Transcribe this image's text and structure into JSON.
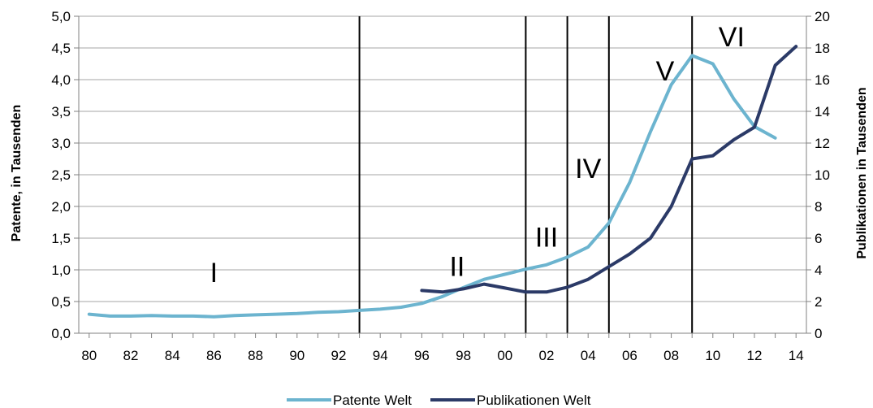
{
  "chart_data": {
    "type": "line",
    "x_labels": [
      "80",
      "82",
      "84",
      "86",
      "88",
      "90",
      "92",
      "94",
      "96",
      "98",
      "00",
      "02",
      "04",
      "06",
      "08",
      "10",
      "12",
      "14"
    ],
    "y_left": {
      "label": "Patente, in Tausenden",
      "range": [
        0,
        5
      ],
      "ticks": [
        "0,0",
        "0,5",
        "1,0",
        "1,5",
        "2,0",
        "2,5",
        "3,0",
        "3,5",
        "4,0",
        "4,5",
        "5,0"
      ]
    },
    "y_right": {
      "label": "Publikationen in Tausenden",
      "range": [
        0,
        20
      ],
      "ticks": [
        "0",
        "2",
        "4",
        "6",
        "8",
        "10",
        "12",
        "14",
        "16",
        "18",
        "20"
      ]
    },
    "grid": true,
    "legend_position": "bottom-center",
    "series": [
      {
        "name": "Patente Welt",
        "axis": "left",
        "color": "#6cb4cf",
        "x": [
          1980,
          1981,
          1982,
          1983,
          1984,
          1985,
          1986,
          1987,
          1988,
          1989,
          1990,
          1991,
          1992,
          1993,
          1994,
          1995,
          1996,
          1997,
          1998,
          1999,
          2000,
          2001,
          2002,
          2003,
          2004,
          2005,
          2006,
          2007,
          2008,
          2009,
          2010,
          2011,
          2012,
          2013
        ],
        "values": [
          0.3,
          0.27,
          0.27,
          0.28,
          0.27,
          0.27,
          0.26,
          0.28,
          0.29,
          0.3,
          0.31,
          0.33,
          0.34,
          0.36,
          0.38,
          0.41,
          0.47,
          0.58,
          0.72,
          0.85,
          0.93,
          1.01,
          1.08,
          1.2,
          1.36,
          1.74,
          2.38,
          3.18,
          3.92,
          4.38,
          4.25,
          3.7,
          3.26,
          3.08
        ]
      },
      {
        "name": "Publikationen Welt",
        "axis": "right",
        "color": "#2b3a67",
        "x": [
          1996,
          1997,
          1998,
          1999,
          2000,
          2001,
          2002,
          2003,
          2004,
          2005,
          2006,
          2007,
          2008,
          2009,
          2010,
          2011,
          2012,
          2013,
          2014
        ],
        "values": [
          2.7,
          2.6,
          2.8,
          3.1,
          2.85,
          2.6,
          2.6,
          2.9,
          3.4,
          4.2,
          5.0,
          6.0,
          8.0,
          11.0,
          11.2,
          12.2,
          13.0,
          16.9,
          18.1
        ]
      }
    ],
    "vertical_lines_x": [
      1993,
      2001,
      2003,
      2005,
      2009
    ],
    "annotations": [
      {
        "text": "I",
        "x": 1986.0,
        "y": 0.96
      },
      {
        "text": "II",
        "x": 1997.7,
        "y": 1.06
      },
      {
        "text": "III",
        "x": 2002.0,
        "y": 1.52
      },
      {
        "text": "IV",
        "x": 2004.0,
        "y": 2.6
      },
      {
        "text": "V",
        "x": 2007.7,
        "y": 4.14
      },
      {
        "text": "VI",
        "x": 2010.9,
        "y": 4.68
      }
    ]
  }
}
